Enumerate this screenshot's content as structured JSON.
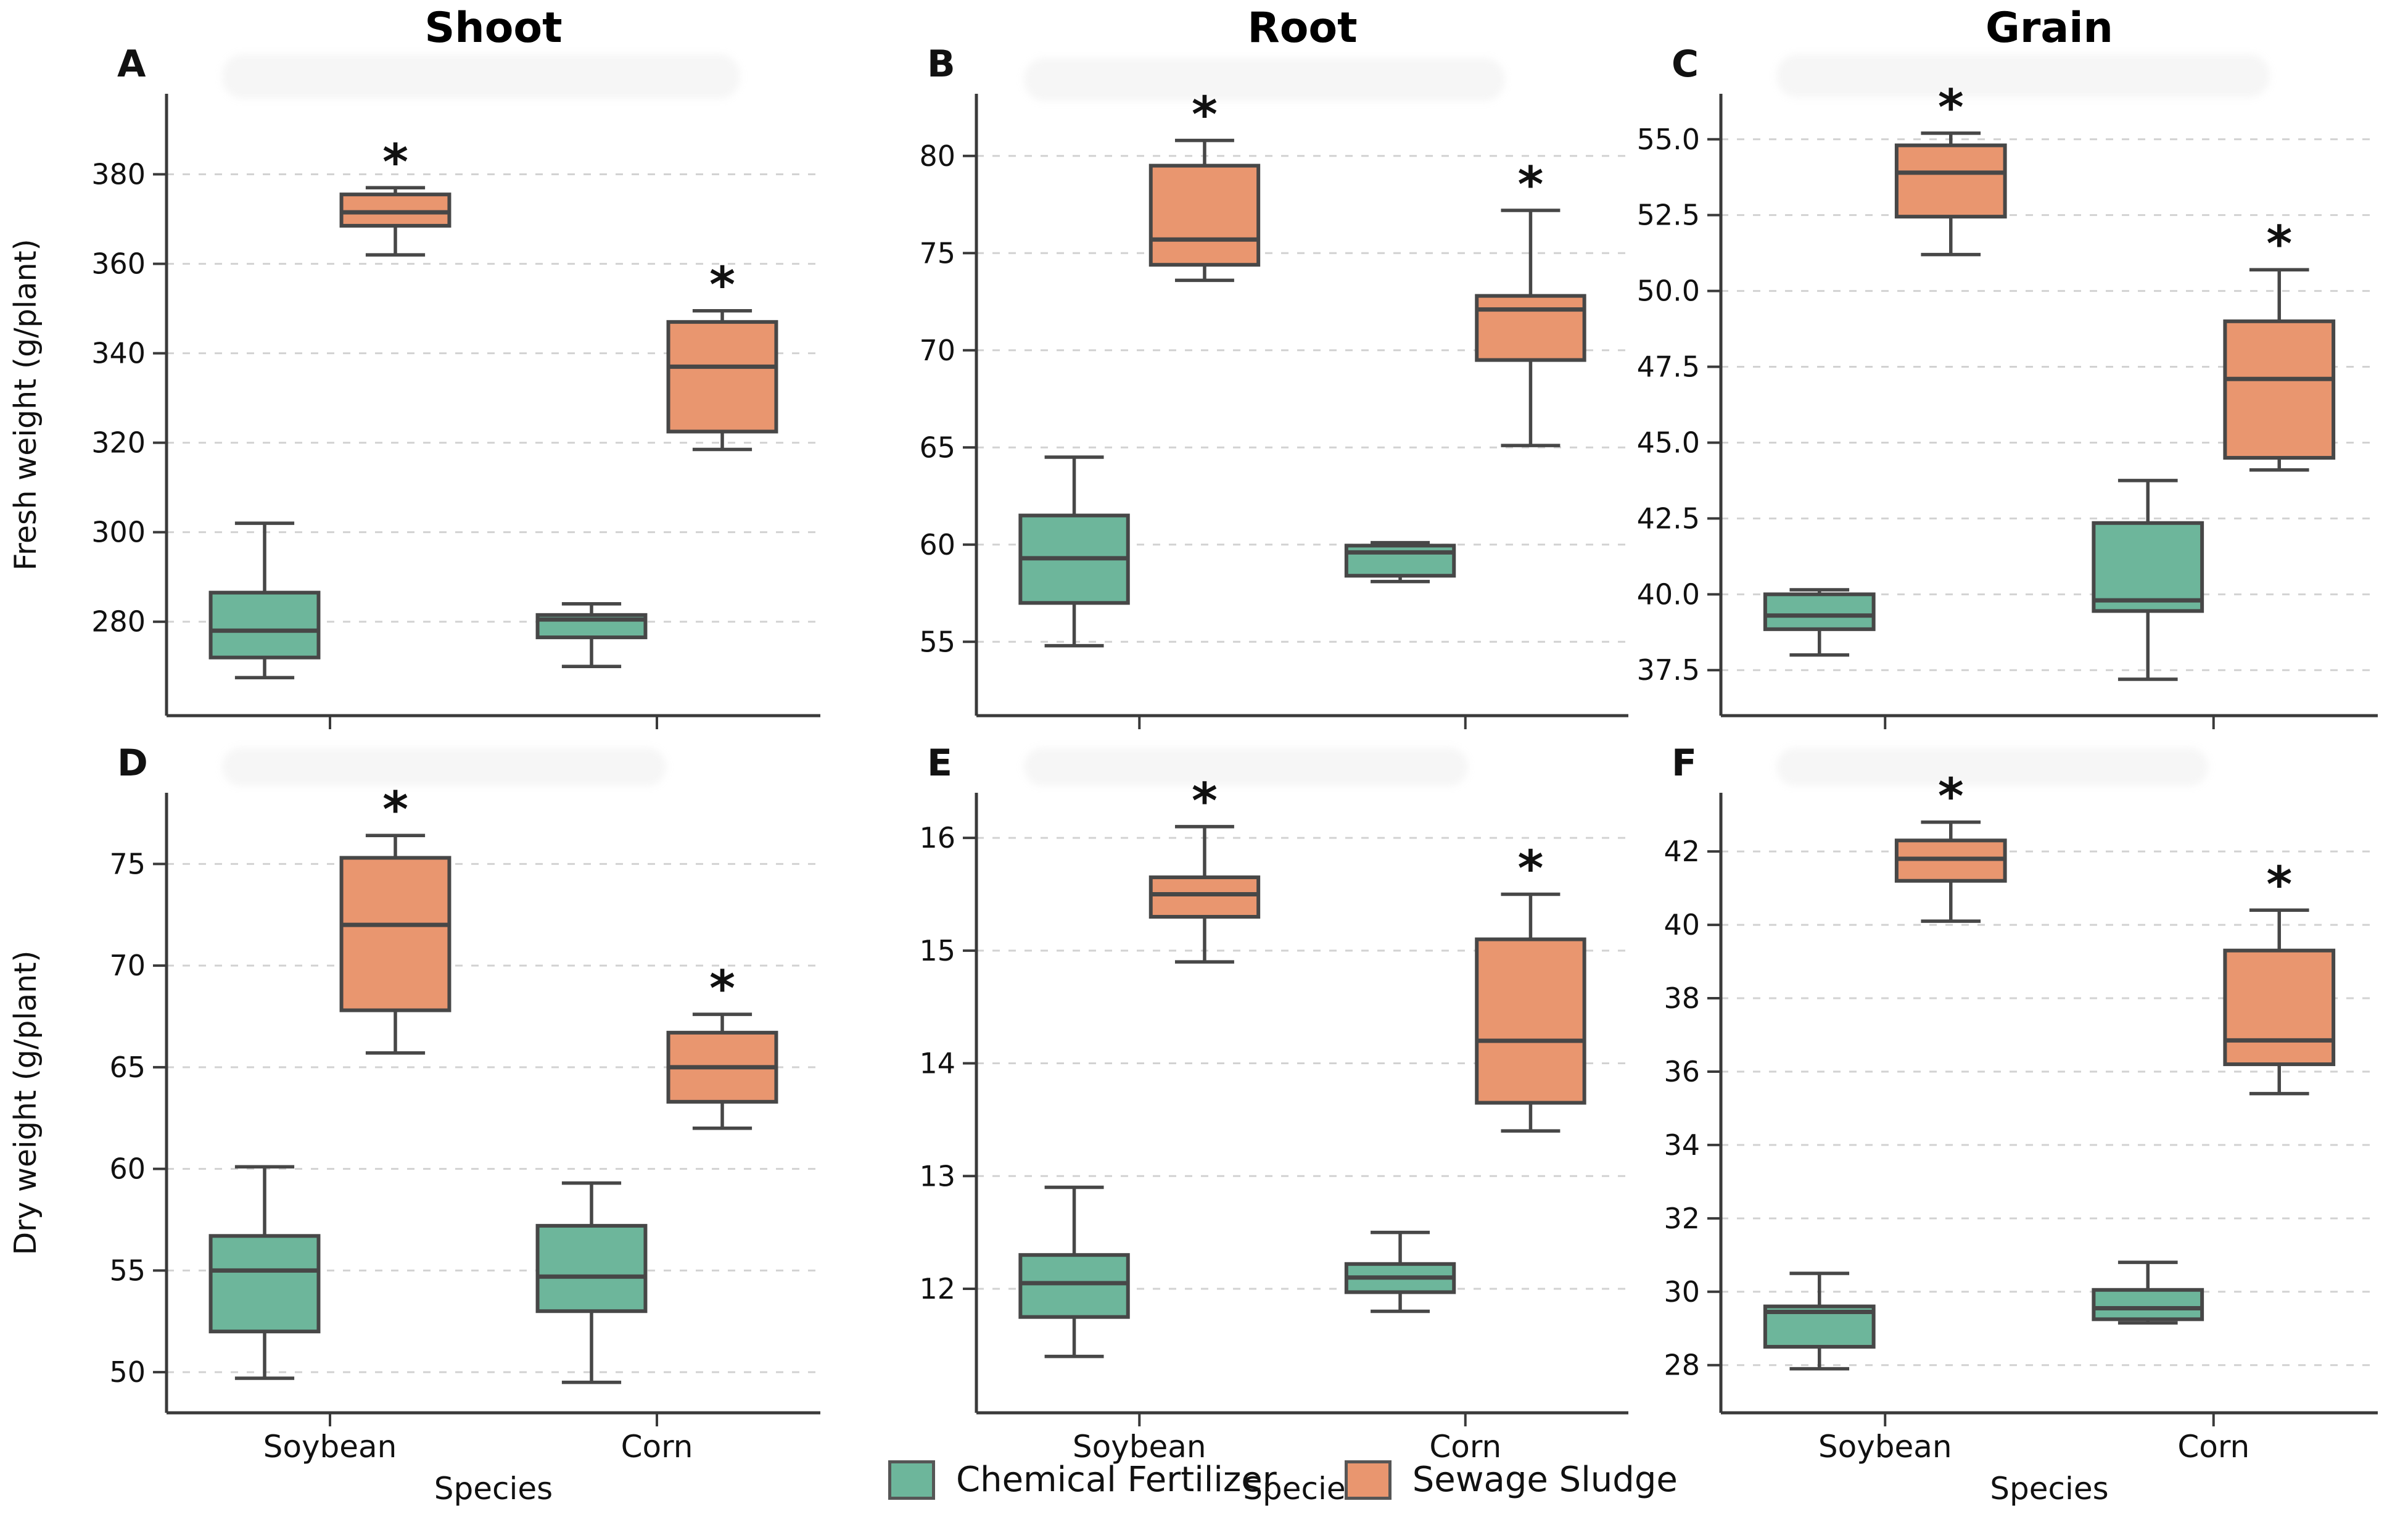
{
  "figure": {
    "column_titles": [
      "Shoot",
      "Root",
      "Grain"
    ],
    "x_axis_label": "Species",
    "species": [
      "Soybean",
      "Corn"
    ],
    "legend": [
      {
        "label": "Chemical Fertilizer",
        "color": "#6db69b"
      },
      {
        "label": "Sewage Sludge",
        "color": "#e9966f"
      }
    ],
    "colors": {
      "box_edge": "#474747",
      "spine": "#3a3a3a",
      "gridline": "#d2d2d2",
      "text": "#111111"
    },
    "significance_marker": "*"
  },
  "chart_data": [
    {
      "type": "box",
      "letter": "A",
      "title": "Shoot",
      "ylabel": "Fresh weight (g/plant)",
      "xlabel": "",
      "show_x_tick_labels": false,
      "ylim": [
        259,
        398
      ],
      "yticks": [
        280,
        300,
        320,
        340,
        360,
        380
      ],
      "ytick_format": "int",
      "categories": [
        "Soybean",
        "Corn"
      ],
      "series": [
        {
          "name": "Chemical Fertilizer",
          "boxes": [
            {
              "whislo": 267.5,
              "q1": 272.0,
              "med": 278.0,
              "q3": 286.5,
              "whishi": 302.0,
              "sig": false
            },
            {
              "whislo": 270.0,
              "q1": 276.5,
              "med": 280.5,
              "q3": 281.5,
              "whishi": 284.0,
              "sig": false
            }
          ]
        },
        {
          "name": "Sewage Sludge",
          "boxes": [
            {
              "whislo": 362.0,
              "q1": 368.5,
              "med": 371.5,
              "q3": 375.5,
              "whishi": 377.0,
              "sig": true
            },
            {
              "whislo": 318.5,
              "q1": 322.5,
              "med": 337.0,
              "q3": 347.0,
              "whishi": 349.5,
              "sig": true
            }
          ]
        }
      ]
    },
    {
      "type": "box",
      "letter": "B",
      "title": "Root",
      "ylabel": "",
      "xlabel": "",
      "show_x_tick_labels": false,
      "ylim": [
        51.2,
        83.2
      ],
      "yticks": [
        55,
        60,
        65,
        70,
        75,
        80
      ],
      "ytick_format": "int",
      "categories": [
        "Soybean",
        "Corn"
      ],
      "series": [
        {
          "name": "Chemical Fertilizer",
          "boxes": [
            {
              "whislo": 54.8,
              "q1": 57.0,
              "med": 59.3,
              "q3": 61.5,
              "whishi": 64.5,
              "sig": false
            },
            {
              "whislo": 58.1,
              "q1": 58.4,
              "med": 59.6,
              "q3": 59.95,
              "whishi": 60.1,
              "sig": false
            }
          ]
        },
        {
          "name": "Sewage Sludge",
          "boxes": [
            {
              "whislo": 73.6,
              "q1": 74.4,
              "med": 75.7,
              "q3": 79.5,
              "whishi": 80.8,
              "sig": true
            },
            {
              "whislo": 65.1,
              "q1": 69.5,
              "med": 72.1,
              "q3": 72.8,
              "whishi": 77.2,
              "sig": true
            }
          ]
        }
      ]
    },
    {
      "type": "box",
      "letter": "C",
      "title": "Grain",
      "ylabel": "",
      "xlabel": "",
      "show_x_tick_labels": false,
      "ylim": [
        36.0,
        56.5
      ],
      "yticks": [
        37.5,
        40.0,
        42.5,
        45.0,
        47.5,
        50.0,
        52.5,
        55.0
      ],
      "ytick_format": "one_decimal",
      "categories": [
        "Soybean",
        "Corn"
      ],
      "series": [
        {
          "name": "Chemical Fertilizer",
          "boxes": [
            {
              "whislo": 38.0,
              "q1": 38.85,
              "med": 39.3,
              "q3": 40.0,
              "whishi": 40.15,
              "sig": false
            },
            {
              "whislo": 37.2,
              "q1": 39.45,
              "med": 39.8,
              "q3": 42.35,
              "whishi": 43.75,
              "sig": false
            }
          ]
        },
        {
          "name": "Sewage Sludge",
          "boxes": [
            {
              "whislo": 51.2,
              "q1": 52.45,
              "med": 53.9,
              "q3": 54.8,
              "whishi": 55.2,
              "sig": true
            },
            {
              "whislo": 44.1,
              "q1": 44.5,
              "med": 47.1,
              "q3": 49.0,
              "whishi": 50.7,
              "sig": true
            }
          ]
        }
      ]
    },
    {
      "type": "box",
      "letter": "D",
      "title": "Shoot",
      "ylabel": "Dry weight (g/plant)",
      "xlabel": "Species",
      "show_x_tick_labels": true,
      "ylim": [
        48.0,
        78.5
      ],
      "yticks": [
        50,
        55,
        60,
        65,
        70,
        75
      ],
      "ytick_format": "int",
      "categories": [
        "Soybean",
        "Corn"
      ],
      "series": [
        {
          "name": "Chemical Fertilizer",
          "boxes": [
            {
              "whislo": 49.7,
              "q1": 52.0,
              "med": 55.0,
              "q3": 56.7,
              "whishi": 60.1,
              "sig": false
            },
            {
              "whislo": 49.5,
              "q1": 53.0,
              "med": 54.7,
              "q3": 57.2,
              "whishi": 59.3,
              "sig": false
            }
          ]
        },
        {
          "name": "Sewage Sludge",
          "boxes": [
            {
              "whislo": 65.7,
              "q1": 67.8,
              "med": 72.0,
              "q3": 75.3,
              "whishi": 76.4,
              "sig": true
            },
            {
              "whislo": 62.0,
              "q1": 63.3,
              "med": 65.0,
              "q3": 66.7,
              "whishi": 67.6,
              "sig": true
            }
          ]
        }
      ]
    },
    {
      "type": "box",
      "letter": "E",
      "title": "Root",
      "ylabel": "",
      "xlabel": "Species",
      "show_x_tick_labels": true,
      "ylim": [
        10.9,
        16.4
      ],
      "yticks": [
        12,
        13,
        14,
        15,
        16
      ],
      "ytick_format": "int",
      "categories": [
        "Soybean",
        "Corn"
      ],
      "series": [
        {
          "name": "Chemical Fertilizer",
          "boxes": [
            {
              "whislo": 11.4,
              "q1": 11.75,
              "med": 12.05,
              "q3": 12.3,
              "whishi": 12.9,
              "sig": false
            },
            {
              "whislo": 11.8,
              "q1": 11.97,
              "med": 12.1,
              "q3": 12.22,
              "whishi": 12.5,
              "sig": false
            }
          ]
        },
        {
          "name": "Sewage Sludge",
          "boxes": [
            {
              "whislo": 14.9,
              "q1": 15.3,
              "med": 15.5,
              "q3": 15.65,
              "whishi": 16.1,
              "sig": true
            },
            {
              "whislo": 13.4,
              "q1": 13.65,
              "med": 14.2,
              "q3": 15.1,
              "whishi": 15.5,
              "sig": true
            }
          ]
        }
      ]
    },
    {
      "type": "box",
      "letter": "F",
      "title": "Grain",
      "ylabel": "",
      "xlabel": "Species",
      "show_x_tick_labels": true,
      "ylim": [
        26.7,
        43.6
      ],
      "yticks": [
        28,
        30,
        32,
        34,
        36,
        38,
        40,
        42
      ],
      "ytick_format": "int",
      "categories": [
        "Soybean",
        "Corn"
      ],
      "series": [
        {
          "name": "Chemical Fertilizer",
          "boxes": [
            {
              "whislo": 27.9,
              "q1": 28.5,
              "med": 29.45,
              "q3": 29.6,
              "whishi": 30.5,
              "sig": false
            },
            {
              "whislo": 29.15,
              "q1": 29.25,
              "med": 29.55,
              "q3": 30.05,
              "whishi": 30.8,
              "sig": false
            }
          ]
        },
        {
          "name": "Sewage Sludge",
          "boxes": [
            {
              "whislo": 40.1,
              "q1": 41.2,
              "med": 41.8,
              "q3": 42.3,
              "whishi": 42.8,
              "sig": true
            },
            {
              "whislo": 35.4,
              "q1": 36.2,
              "med": 36.85,
              "q3": 39.3,
              "whishi": 40.4,
              "sig": true
            }
          ]
        }
      ]
    }
  ]
}
